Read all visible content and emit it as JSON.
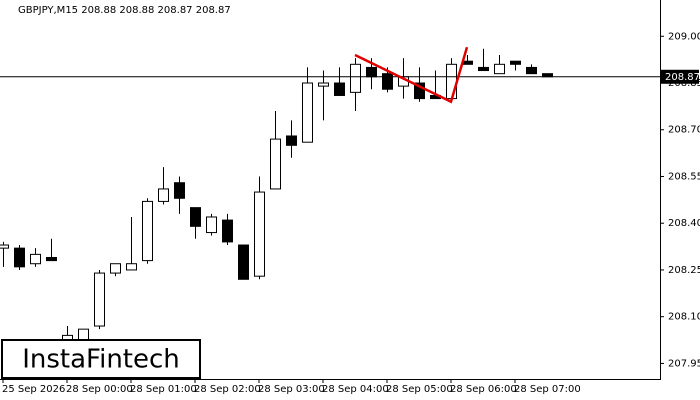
{
  "chart_data": {
    "type": "candlestick",
    "title": "GBPJPY,M15  208.88 208.88 208.87 208.87",
    "categories": [
      "25 Sep 2026",
      null,
      null,
      null,
      "28 Sep 00:00",
      null,
      null,
      null,
      "28 Sep 01:00",
      null,
      null,
      null,
      "28 Sep 02:00",
      null,
      null,
      null,
      "28 Sep 03:00",
      null,
      null,
      null,
      "28 Sep 04:00",
      null,
      null,
      null,
      "28 Sep 05:00",
      null,
      null,
      null,
      "28 Sep 06:00",
      null,
      null,
      null,
      "28 Sep 07:00",
      null,
      null
    ],
    "open": [
      208.32,
      208.32,
      208.27,
      208.29,
      207.98,
      208.01,
      208.07,
      208.24,
      208.25,
      208.28,
      208.47,
      208.53,
      208.45,
      208.37,
      208.41,
      208.33,
      208.23,
      208.51,
      208.68,
      208.66,
      208.84,
      208.85,
      208.82,
      208.9,
      208.88,
      208.84,
      208.85,
      208.81,
      208.8,
      208.92,
      208.9,
      208.88,
      208.92,
      208.9,
      208.88
    ],
    "high": [
      208.34,
      208.33,
      208.32,
      208.35,
      208.07,
      208.06,
      208.25,
      208.27,
      208.42,
      208.48,
      208.58,
      208.55,
      208.45,
      208.43,
      208.43,
      208.33,
      208.55,
      208.76,
      208.73,
      208.9,
      208.89,
      208.9,
      208.93,
      208.93,
      208.9,
      208.93,
      208.9,
      208.89,
      208.93,
      208.94,
      208.96,
      208.94,
      208.92,
      208.91,
      208.88
    ],
    "low": [
      208.26,
      208.25,
      208.26,
      208.28,
      207.95,
      208.0,
      208.06,
      208.23,
      208.25,
      208.27,
      208.46,
      208.43,
      208.35,
      208.36,
      208.33,
      208.22,
      208.22,
      208.51,
      208.61,
      208.66,
      208.73,
      208.81,
      208.76,
      208.83,
      208.82,
      208.8,
      208.79,
      208.8,
      208.8,
      208.91,
      208.89,
      208.88,
      208.89,
      208.88,
      208.87
    ],
    "close": [
      208.33,
      208.26,
      208.3,
      208.28,
      208.04,
      208.06,
      208.24,
      208.27,
      208.27,
      208.47,
      208.51,
      208.48,
      208.39,
      208.42,
      208.34,
      208.22,
      208.5,
      208.67,
      208.65,
      208.85,
      208.85,
      208.81,
      208.91,
      208.87,
      208.83,
      208.87,
      208.8,
      208.8,
      208.91,
      208.91,
      208.89,
      208.91,
      208.91,
      208.88,
      208.87
    ],
    "up_color": "#ffffff",
    "down_color": "#000000",
    "ylim": [
      207.9,
      209.11
    ],
    "yticks": [
      207.95,
      {
        "value": 208.1,
        "label": "208.10"
      },
      208.25,
      {
        "value": 208.4,
        "label": "208.40"
      },
      208.55,
      {
        "value": 208.7,
        "label": "208.70"
      },
      208.85,
      {
        "value": 209.0,
        "label": "209.00"
      }
    ],
    "current_price": 208.87,
    "pattern": {
      "color": "#e00000",
      "x": [
        22,
        28,
        29
      ],
      "y": [
        208.94,
        208.79,
        208.965
      ]
    },
    "logo": "InstaFintech"
  }
}
